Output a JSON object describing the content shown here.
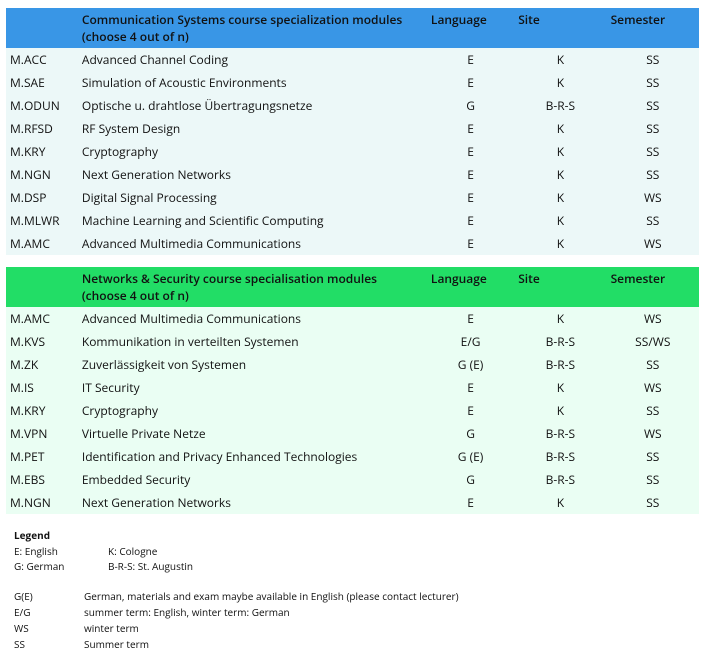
{
  "columns": {
    "code": "",
    "title_cs": "Communication Systems course specialization modules (choose 4 out of n)",
    "title_ns": "Networks & Security course specialisation modules (choose 4 out of n)",
    "language": "Language",
    "site": "Site",
    "semester": "Semester"
  },
  "colors": {
    "header_blue": "#3996e6",
    "header_green": "#22dd66",
    "body_blue": "#ecf8f8",
    "body_green": "#eafef3",
    "text": "#111111",
    "page_bg": "#ffffff"
  },
  "cs_rows": [
    {
      "code": "M.ACC",
      "title": "Advanced Channel Coding",
      "lang": "E",
      "site": "K",
      "sem": "SS"
    },
    {
      "code": "M.SAE",
      "title": "Simulation of Acoustic Environments",
      "lang": "E",
      "site": "K",
      "sem": "SS"
    },
    {
      "code": "M.ODUN",
      "title": "Optische u. drahtlose Übertragungsnetze",
      "lang": "G",
      "site": "B-R-S",
      "sem": "SS"
    },
    {
      "code": "M.RFSD",
      "title": "RF System Design",
      "lang": "E",
      "site": "K",
      "sem": "SS"
    },
    {
      "code": "M.KRY",
      "title": "Cryptography",
      "lang": "E",
      "site": "K",
      "sem": "SS"
    },
    {
      "code": "M.NGN",
      "title": "Next Generation Networks",
      "lang": "E",
      "site": "K",
      "sem": "SS"
    },
    {
      "code": "M.DSP",
      "title": "Digital Signal Processing",
      "lang": "E",
      "site": "K",
      "sem": "WS"
    },
    {
      "code": "M.MLWR",
      "title": "Machine Learning and Scientific Computing",
      "lang": "E",
      "site": "K",
      "sem": "SS"
    },
    {
      "code": "M.AMC",
      "title": "Advanced Multimedia Communications",
      "lang": "E",
      "site": "K",
      "sem": "WS"
    }
  ],
  "ns_rows": [
    {
      "code": "M.AMC",
      "title": "Advanced Multimedia Communications",
      "lang": "E",
      "site": "K",
      "sem": "WS"
    },
    {
      "code": "M.KVS",
      "title": "Kommunikation in verteilten Systemen",
      "lang": "E/G",
      "site": "B-R-S",
      "sem": "SS/WS"
    },
    {
      "code": "M.ZK",
      "title": "Zuverlässigkeit von Systemen",
      "lang": "G (E)",
      "site": "B-R-S",
      "sem": "SS"
    },
    {
      "code": "M.IS",
      "title": "IT Security",
      "lang": "E",
      "site": "K",
      "sem": "WS"
    },
    {
      "code": "M.KRY",
      "title": "Cryptography",
      "lang": "E",
      "site": "K",
      "sem": "SS"
    },
    {
      "code": "M.VPN",
      "title": "Virtuelle Private Netze",
      "lang": "G",
      "site": "B-R-S",
      "sem": "WS"
    },
    {
      "code": "M.PET",
      "title": "Identification and Privacy Enhanced Technologies",
      "lang": "G (E)",
      "site": "B-R-S",
      "sem": "SS"
    },
    {
      "code": "M.EBS",
      "title": "Embedded Security",
      "lang": "G",
      "site": "B-R-S",
      "sem": "SS"
    },
    {
      "code": "M.NGN",
      "title": "Next Generation Networks",
      "lang": "E",
      "site": "K",
      "sem": "SS"
    }
  ],
  "legend": {
    "title": "Legend",
    "pairs": [
      {
        "k": "E: English",
        "v": "K: Cologne"
      },
      {
        "k": "G: German",
        "v": "B-R-S: St. Augustin"
      }
    ],
    "defs": [
      {
        "k": "G(E)",
        "v": "German, materials and exam maybe available in English (please contact lecturer)"
      },
      {
        "k": "E/G",
        "v": "summer term: English, winter term: German"
      },
      {
        "k": "WS",
        "v": "winter term"
      },
      {
        "k": "SS",
        "v": "Summer term"
      }
    ]
  }
}
